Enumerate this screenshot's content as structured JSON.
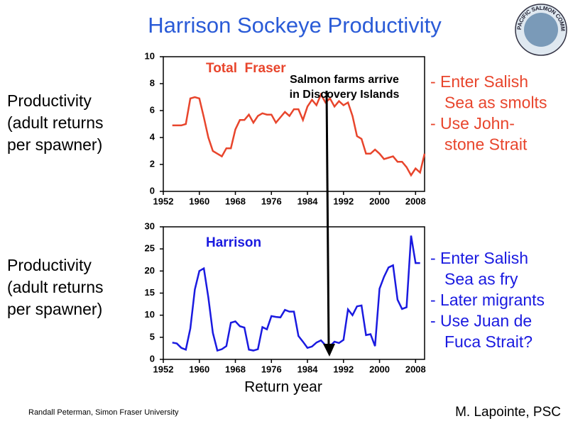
{
  "title": "Harrison Sockeye Productivity",
  "logo_text": "PACIFIC SALMON COMMISSION",
  "credit": "Randall Peterman, Simon Fraser University",
  "source": "M. Lapointe, PSC",
  "arrow_label": [
    "Salmon farms arrive",
    "in Discovery Islands"
  ],
  "chart_data": [
    {
      "type": "line",
      "y_label": [
        "Productivity",
        "(adult returns",
        "per spawner)"
      ],
      "notes_color": "#e8452c",
      "notes": [
        [
          "- Enter Salish",
          "Sea as smolts"
        ],
        [
          "- Use John-",
          "stone Strait"
        ]
      ],
      "x": [
        1954,
        1955,
        1956,
        1957,
        1958,
        1959,
        1960,
        1961,
        1962,
        1963,
        1964,
        1965,
        1966,
        1967,
        1968,
        1969,
        1970,
        1971,
        1972,
        1973,
        1974,
        1975,
        1976,
        1977,
        1978,
        1979,
        1980,
        1981,
        1982,
        1983,
        1984,
        1985,
        1986,
        1987,
        1988,
        1989,
        1990,
        1991,
        1992,
        1993,
        1994,
        1995,
        1996,
        1997,
        1998,
        1999,
        2000,
        2001,
        2002,
        2003,
        2004,
        2005,
        2006,
        2007,
        2008,
        2009,
        2010
      ],
      "series": [
        {
          "name": "Total  Fraser",
          "color": "#e8452c",
          "values": [
            4.9,
            4.9,
            4.9,
            5.0,
            6.9,
            7.0,
            6.9,
            5.5,
            4.0,
            3.0,
            2.8,
            2.6,
            3.2,
            3.2,
            4.6,
            5.3,
            5.3,
            5.7,
            5.1,
            5.6,
            5.8,
            5.7,
            5.7,
            5.1,
            5.5,
            5.9,
            5.6,
            6.1,
            6.1,
            5.3,
            6.3,
            6.8,
            6.4,
            7.2,
            6.6,
            6.9,
            6.3,
            6.7,
            6.4,
            6.6,
            5.6,
            4.1,
            3.9,
            2.8,
            2.8,
            3.1,
            2.8,
            2.4,
            2.5,
            2.6,
            2.2,
            2.2,
            1.8,
            1.2,
            1.7,
            1.4,
            2.8
          ]
        }
      ],
      "xlim": [
        1952,
        2010
      ],
      "xticks": [
        1952,
        1960,
        1968,
        1976,
        1984,
        1992,
        2000,
        2008
      ],
      "ylim": [
        0,
        10
      ],
      "yticks": [
        0,
        2,
        4,
        6,
        8,
        10
      ]
    },
    {
      "type": "line",
      "y_label": [
        "Productivity",
        "(adult returns",
        "per spawner)"
      ],
      "x_label": "Return year",
      "notes_color": "#1a1ae0",
      "notes": [
        [
          "- Enter Salish",
          "Sea as fry"
        ],
        [
          "- Later migrants"
        ],
        [
          "- Use Juan de",
          "Fuca Strait?"
        ]
      ],
      "x": [
        1954,
        1955,
        1956,
        1957,
        1958,
        1959,
        1960,
        1961,
        1962,
        1963,
        1964,
        1965,
        1966,
        1967,
        1968,
        1969,
        1970,
        1971,
        1972,
        1973,
        1974,
        1975,
        1976,
        1977,
        1978,
        1979,
        1980,
        1981,
        1982,
        1983,
        1984,
        1985,
        1986,
        1987,
        1988,
        1989,
        1990,
        1991,
        1992,
        1993,
        1994,
        1995,
        1996,
        1997,
        1998,
        1999,
        2000,
        2001,
        2002,
        2003,
        2004,
        2005,
        2006,
        2007,
        2008,
        2009
      ],
      "series": [
        {
          "name": "Harrison",
          "color": "#1a1ae0",
          "values": [
            3.8,
            3.6,
            2.6,
            2.2,
            7,
            15.8,
            20,
            20.6,
            14,
            6,
            2,
            2.3,
            3,
            8.3,
            8.6,
            7.5,
            7.2,
            2.2,
            2,
            2.3,
            7.3,
            6.8,
            9.8,
            9.6,
            9.5,
            11.2,
            10.8,
            10.8,
            5.3,
            4,
            2.6,
            2.9,
            3.8,
            4.3,
            3.2,
            3,
            4,
            3.7,
            4.4,
            11.3,
            10,
            12,
            12.2,
            5.5,
            5.7,
            3,
            16,
            18.7,
            20.8,
            21.3,
            13.5,
            11.4,
            11.8,
            28,
            21.8,
            21.8
          ]
        }
      ],
      "xlim": [
        1952,
        2010
      ],
      "xticks": [
        1952,
        1960,
        1968,
        1976,
        1984,
        1992,
        2000,
        2008
      ],
      "ylim": [
        0,
        30
      ],
      "yticks": [
        0,
        5,
        10,
        15,
        20,
        25,
        30
      ]
    }
  ]
}
